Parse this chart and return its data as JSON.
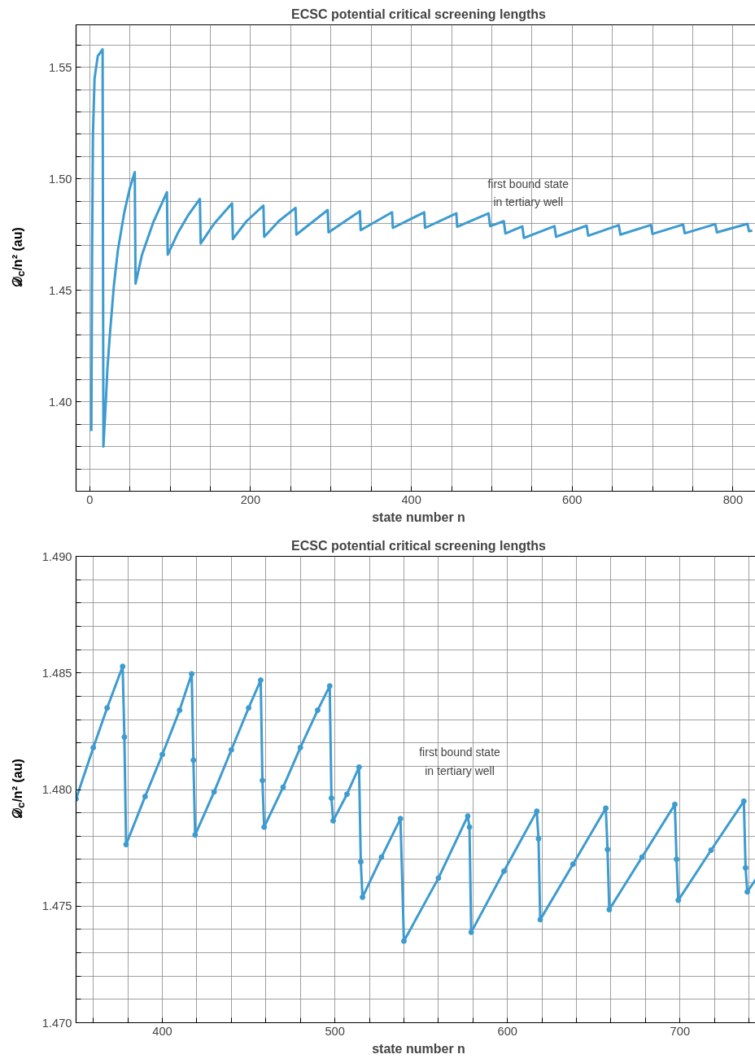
{
  "chart_data": [
    {
      "type": "line",
      "title": "ECSC potential critical screening lengths",
      "xlabel": "state number n",
      "ylabel": "𝒟$_{c}$/n² (au)",
      "color": "#3d9bd0",
      "grid": true,
      "line_style": "solid",
      "x": [
        2,
        3,
        4,
        6,
        10,
        16,
        17,
        20,
        22,
        25,
        30,
        35,
        43,
        50,
        56,
        57,
        65,
        79,
        96,
        97,
        110,
        123,
        137,
        138,
        155,
        177,
        178,
        195,
        216,
        217,
        235,
        256,
        257,
        296,
        297,
        336,
        337,
        376,
        377,
        416,
        417,
        456,
        457,
        496,
        498,
        515,
        517,
        538,
        540,
        578,
        580,
        618,
        620,
        658,
        660,
        698,
        700,
        738,
        740,
        778,
        780,
        818,
        820,
        824
      ],
      "values": [
        1.387,
        1.47,
        1.52,
        1.545,
        1.555,
        1.558,
        1.38,
        1.4,
        1.415,
        1.43,
        1.452,
        1.468,
        1.485,
        1.496,
        1.503,
        1.453,
        1.466,
        1.4805,
        1.494,
        1.466,
        1.476,
        1.484,
        1.491,
        1.471,
        1.48,
        1.489,
        1.473,
        1.481,
        1.488,
        1.474,
        1.481,
        1.487,
        1.475,
        1.486,
        1.476,
        1.4855,
        1.477,
        1.485,
        1.478,
        1.485,
        1.478,
        1.4845,
        1.4785,
        1.4845,
        1.4788,
        1.481,
        1.4755,
        1.4787,
        1.4735,
        1.4788,
        1.474,
        1.479,
        1.4745,
        1.4792,
        1.475,
        1.4793,
        1.4753,
        1.4795,
        1.4756,
        1.4797,
        1.476,
        1.4798,
        1.4765,
        1.4768
      ],
      "xlim": [
        -17,
        835
      ],
      "ylim": [
        1.36,
        1.569
      ],
      "xticks": [
        0,
        {
          "value": 50,
          "label": null
        },
        {
          "value": 100,
          "label": null
        },
        {
          "value": 150,
          "label": null
        },
        200,
        {
          "value": 250,
          "label": null
        },
        {
          "value": 300,
          "label": null
        },
        {
          "value": 350,
          "label": null
        },
        400,
        {
          "value": 450,
          "label": null
        },
        {
          "value": 500,
          "label": null
        },
        {
          "value": 550,
          "label": null
        },
        600,
        {
          "value": 650,
          "label": null
        },
        {
          "value": 700,
          "label": null
        },
        {
          "value": 750,
          "label": null
        },
        800
      ],
      "yticks": [
        {
          "value": 1.37,
          "label": null
        },
        {
          "value": 1.38,
          "label": null
        },
        {
          "value": 1.39,
          "label": null
        },
        {
          "value": 1.4,
          "label": "1.40"
        },
        {
          "value": 1.41,
          "label": null
        },
        {
          "value": 1.42,
          "label": null
        },
        {
          "value": 1.43,
          "label": null
        },
        {
          "value": 1.44,
          "label": null
        },
        1.45,
        {
          "value": 1.46,
          "label": null
        },
        {
          "value": 1.47,
          "label": null
        },
        {
          "value": 1.48,
          "label": null
        },
        {
          "value": 1.49,
          "label": null
        },
        {
          "value": 1.5,
          "label": "1.50"
        },
        {
          "value": 1.51,
          "label": null
        },
        {
          "value": 1.52,
          "label": null
        },
        {
          "value": 1.53,
          "label": null
        },
        {
          "value": 1.54,
          "label": null
        },
        1.55,
        {
          "value": 1.56,
          "label": null
        }
      ],
      "annotations": [
        "first bound state\nin tertiary well"
      ]
    },
    {
      "type": "line",
      "title": "ECSC potential critical screening lengths",
      "xlabel": "state number n",
      "ylabel": "𝒟$_{c}$/n² (au)",
      "color": "#3d9bd0",
      "grid": true,
      "marker": "circle",
      "line_style": "solid",
      "x": [
        350,
        360,
        368,
        377,
        378,
        379,
        390,
        400,
        410,
        417,
        418,
        419,
        430,
        440,
        450,
        457,
        458,
        459,
        470,
        480,
        490,
        497,
        498,
        499,
        507,
        514,
        515,
        516,
        527,
        538,
        540,
        560,
        577,
        578,
        579,
        598,
        617,
        618,
        619,
        638,
        657,
        658,
        659,
        678,
        697,
        698,
        699,
        718,
        737,
        738,
        739,
        747
      ],
      "values": [
        1.4796,
        1.4818,
        1.4835,
        1.48528,
        1.48225,
        1.47764,
        1.4797,
        1.4815,
        1.4834,
        1.48496,
        1.48126,
        1.47805,
        1.4799,
        1.4817,
        1.4835,
        1.48469,
        1.48039,
        1.47839,
        1.4801,
        1.4818,
        1.4834,
        1.48444,
        1.47963,
        1.47866,
        1.4798,
        1.48096,
        1.4769,
        1.47538,
        1.4771,
        1.47875,
        1.4735,
        1.4762,
        1.47886,
        1.47839,
        1.47388,
        1.4765,
        1.47907,
        1.47789,
        1.47442,
        1.4768,
        1.4792,
        1.47743,
        1.47485,
        1.4771,
        1.47936,
        1.47701,
        1.47525,
        1.4774,
        1.4795,
        1.47664,
        1.47561,
        1.47648
      ],
      "xlim": [
        350,
        747
      ],
      "ylim": [
        1.47,
        1.49
      ],
      "xticks": [
        {
          "value": 360,
          "label": null
        },
        {
          "value": 380,
          "label": null
        },
        400,
        {
          "value": 420,
          "label": null
        },
        {
          "value": 440,
          "label": null
        },
        {
          "value": 460,
          "label": null
        },
        {
          "value": 480,
          "label": null
        },
        500,
        {
          "value": 520,
          "label": null
        },
        {
          "value": 540,
          "label": null
        },
        {
          "value": 560,
          "label": null
        },
        {
          "value": 580,
          "label": null
        },
        600,
        {
          "value": 620,
          "label": null
        },
        {
          "value": 640,
          "label": null
        },
        {
          "value": 660,
          "label": null
        },
        {
          "value": 680,
          "label": null
        },
        700,
        {
          "value": 720,
          "label": null
        },
        {
          "value": 740,
          "label": null
        }
      ],
      "yticks": [
        {
          "value": 1.47,
          "label": "1.470"
        },
        {
          "value": 1.471,
          "label": null
        },
        {
          "value": 1.472,
          "label": null
        },
        {
          "value": 1.473,
          "label": null
        },
        {
          "value": 1.474,
          "label": null
        },
        1.475,
        {
          "value": 1.476,
          "label": null
        },
        {
          "value": 1.477,
          "label": null
        },
        {
          "value": 1.478,
          "label": null
        },
        {
          "value": 1.479,
          "label": null
        },
        {
          "value": 1.48,
          "label": "1.480"
        },
        {
          "value": 1.481,
          "label": null
        },
        {
          "value": 1.482,
          "label": null
        },
        {
          "value": 1.483,
          "label": null
        },
        {
          "value": 1.484,
          "label": null
        },
        1.485,
        {
          "value": 1.486,
          "label": null
        },
        {
          "value": 1.487,
          "label": null
        },
        {
          "value": 1.488,
          "label": null
        },
        {
          "value": 1.489,
          "label": null
        },
        {
          "value": 1.49,
          "label": "1.490"
        }
      ],
      "annotations": [
        "first bound state\nin tertiary well"
      ]
    }
  ]
}
